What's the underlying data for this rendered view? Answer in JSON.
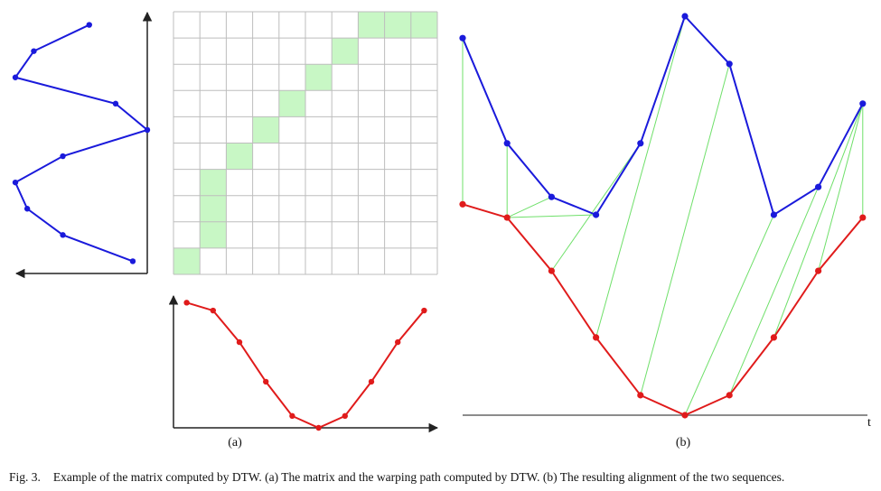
{
  "labels": {
    "a": "(a)",
    "b": "(b)",
    "t_axis": "t"
  },
  "caption": {
    "number": "Fig. 3.",
    "text": "Example of the matrix computed by DTW. (a) The matrix and the warping path computed by DTW. (b) The resulting alignment of the two sequences."
  },
  "colors": {
    "blue_series": "#1a1adb",
    "red_series": "#e01b1b",
    "path_fill": "#c8f7c5",
    "grid_line": "#bdbdbd",
    "match_line": "#6fe06a",
    "axis": "#222222"
  },
  "matrix": {
    "rows": 10,
    "cols": 10,
    "path_cells": [
      [
        0,
        0
      ],
      [
        1,
        1
      ],
      [
        1,
        2
      ],
      [
        1,
        3
      ],
      [
        2,
        4
      ],
      [
        3,
        5
      ],
      [
        4,
        6
      ],
      [
        5,
        7
      ],
      [
        6,
        8
      ],
      [
        7,
        9
      ],
      [
        8,
        9
      ],
      [
        9,
        9
      ]
    ]
  },
  "blue_sequence": [
    0.89,
    0.36,
    0.09,
    0.0,
    0.36,
    1.0,
    0.76,
    0.0,
    0.14,
    0.56
  ],
  "red_sequence": [
    0.95,
    0.89,
    0.65,
    0.35,
    0.09,
    0.0,
    0.09,
    0.35,
    0.65,
    0.89
  ],
  "alignment_pairs": [
    [
      0,
      0
    ],
    [
      1,
      1
    ],
    [
      2,
      1
    ],
    [
      3,
      1
    ],
    [
      4,
      2
    ],
    [
      5,
      3
    ],
    [
      6,
      4
    ],
    [
      7,
      5
    ],
    [
      8,
      6
    ],
    [
      9,
      7
    ],
    [
      9,
      8
    ],
    [
      9,
      9
    ]
  ]
}
